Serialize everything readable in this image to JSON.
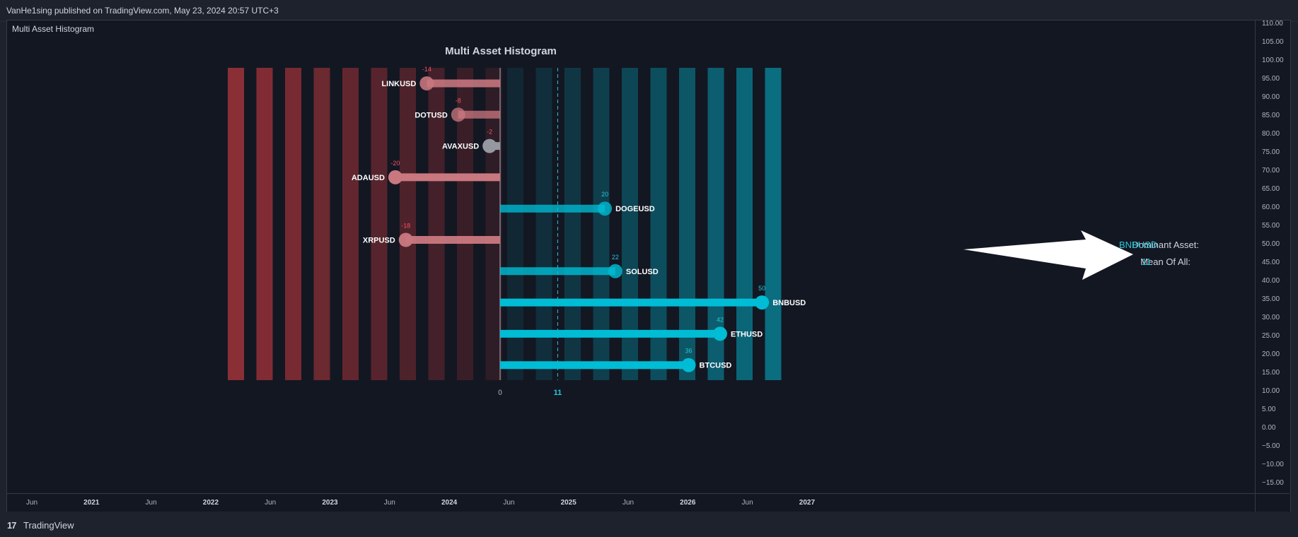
{
  "header": {
    "text": "VanHe1sing published on TradingView.com, May 23, 2024 20:57 UTC+3"
  },
  "indicator": {
    "label": "Multi Asset Histogram"
  },
  "footer": {
    "logo_icon": "17",
    "logo_text": "TradingView"
  },
  "price_axis": {
    "ticks": [
      "110.00",
      "105.00",
      "100.00",
      "95.00",
      "90.00",
      "85.00",
      "80.00",
      "75.00",
      "70.00",
      "65.00",
      "60.00",
      "55.00",
      "50.00",
      "45.00",
      "40.00",
      "35.00",
      "30.00",
      "25.00",
      "20.00",
      "15.00",
      "10.00",
      "5.00",
      "0.00",
      "−5.00",
      "−10.00",
      "−15.00"
    ]
  },
  "time_axis": {
    "ticks": [
      {
        "label": "Jun",
        "year": false
      },
      {
        "label": "2021",
        "year": true
      },
      {
        "label": "Jun",
        "year": false
      },
      {
        "label": "2022",
        "year": true
      },
      {
        "label": "Jun",
        "year": false
      },
      {
        "label": "2023",
        "year": true
      },
      {
        "label": "Jun",
        "year": false
      },
      {
        "label": "2024",
        "year": true
      },
      {
        "label": "Jun",
        "year": false
      },
      {
        "label": "2025",
        "year": true
      },
      {
        "label": "Jun",
        "year": false
      },
      {
        "label": "2026",
        "year": true
      },
      {
        "label": "Jun",
        "year": false
      },
      {
        "label": "2027",
        "year": true
      }
    ]
  },
  "dominant": {
    "label": "Dominant Asset:",
    "value": "BNBUSD",
    "mean_label": "Mean Of All:",
    "mean_value": "11"
  },
  "chart_data": {
    "type": "bar",
    "title": "Multi Asset Histogram",
    "orientation": "horizontal",
    "categories": [
      "LINKUSD",
      "DOTUSD",
      "AVAXUSD",
      "ADAUSD",
      "DOGEUSD",
      "XRPUSD",
      "SOLUSD",
      "BNBUSD",
      "ETHUSD",
      "BTCUSD"
    ],
    "values": [
      -14,
      -8,
      -2,
      -20,
      20,
      -18,
      22,
      50,
      42,
      36
    ],
    "xlim": [
      -52,
      52
    ],
    "zero_label": "0",
    "mean": 11,
    "mean_label": "11",
    "colors": {
      "negative": "#c9787f",
      "neutral": "#9598a1",
      "positive": "#00bcd4",
      "positive_label": "#26c6da",
      "negative_label": "#f7525f",
      "bg_negative": "#8b2f36",
      "bg_positive": "#0a6d80"
    }
  }
}
